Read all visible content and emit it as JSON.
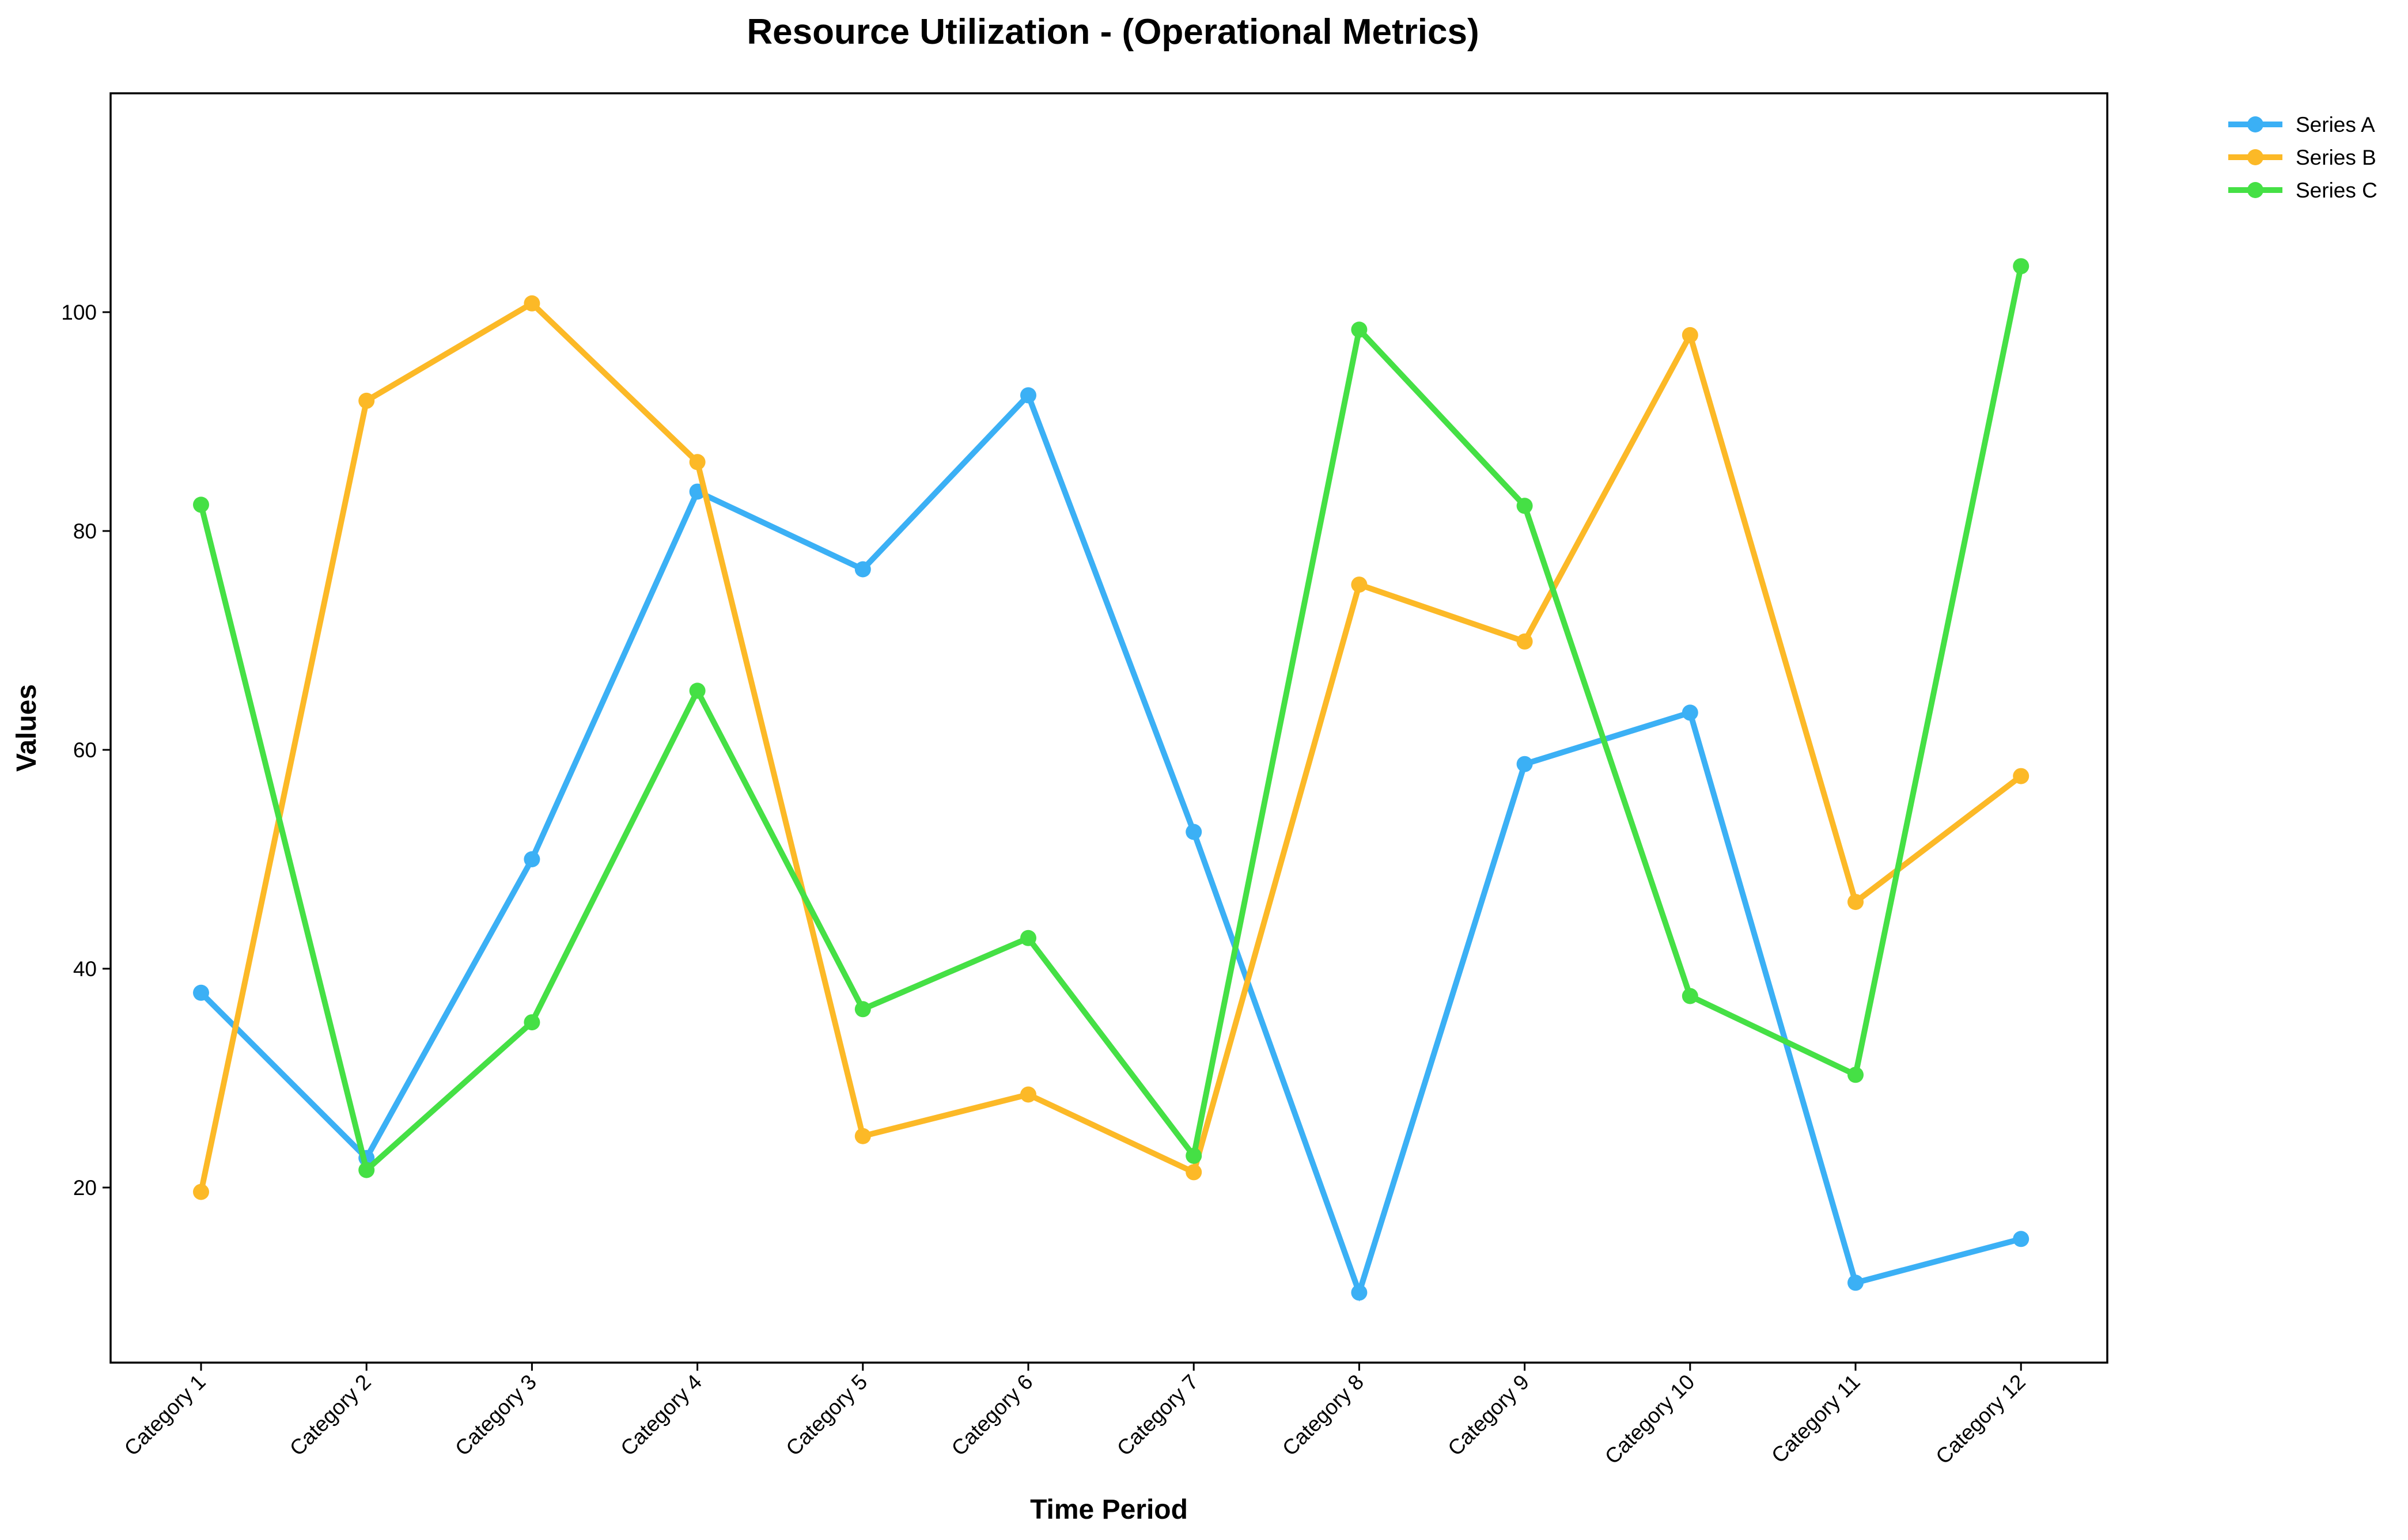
{
  "chart_data": {
    "type": "line",
    "title": "Resource Utilization - (Operational Metrics)",
    "xlabel": "Time Period",
    "ylabel": "Values",
    "categories": [
      "Category 1",
      "Category 2",
      "Category 3",
      "Category 4",
      "Category 5",
      "Category 6",
      "Category 7",
      "Category 8",
      "Category 9",
      "Category 10",
      "Category 11",
      "Category 12"
    ],
    "ylim": [
      4,
      120
    ],
    "yticks": [
      20,
      40,
      60,
      80,
      100
    ],
    "grid": false,
    "legend_position": "outside top-right",
    "series": [
      {
        "name": "Series A",
        "color": "#3bb0f5",
        "values": [
          37.8,
          22.7,
          50.0,
          83.6,
          76.5,
          92.4,
          52.5,
          10.4,
          58.7,
          63.4,
          11.3,
          15.3
        ]
      },
      {
        "name": "Series B",
        "color": "#fcb927",
        "values": [
          19.6,
          91.9,
          100.8,
          86.3,
          24.7,
          28.5,
          21.4,
          75.1,
          69.9,
          97.9,
          46.1,
          57.6
        ]
      },
      {
        "name": "Series C",
        "color": "#45e045",
        "values": [
          82.4,
          21.6,
          35.1,
          65.4,
          36.3,
          42.8,
          22.9,
          98.4,
          82.3,
          37.5,
          30.3,
          104.2
        ]
      }
    ]
  }
}
